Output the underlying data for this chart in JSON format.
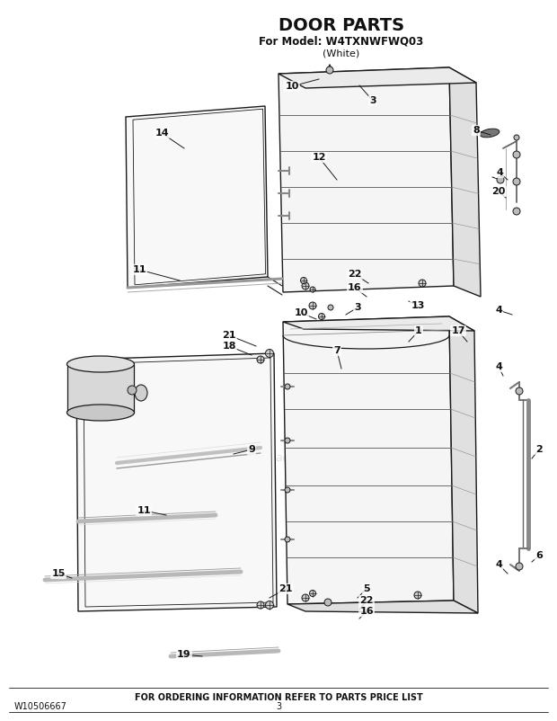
{
  "title": "DOOR PARTS",
  "subtitle": "For Model: W4TXNWFWQ03",
  "subtitle2": "(White)",
  "footer_left": "W10506667",
  "footer_center": "3",
  "footer_bottom": "FOR ORDERING INFORMATION REFER TO PARTS PRICE LIST",
  "bg_color": "#ffffff",
  "line_color": "#1a1a1a",
  "text_color": "#111111",
  "watermark": "ereplacementparts.com",
  "title_fontsize": 14,
  "sub_fontsize": 9,
  "label_fontsize": 8
}
